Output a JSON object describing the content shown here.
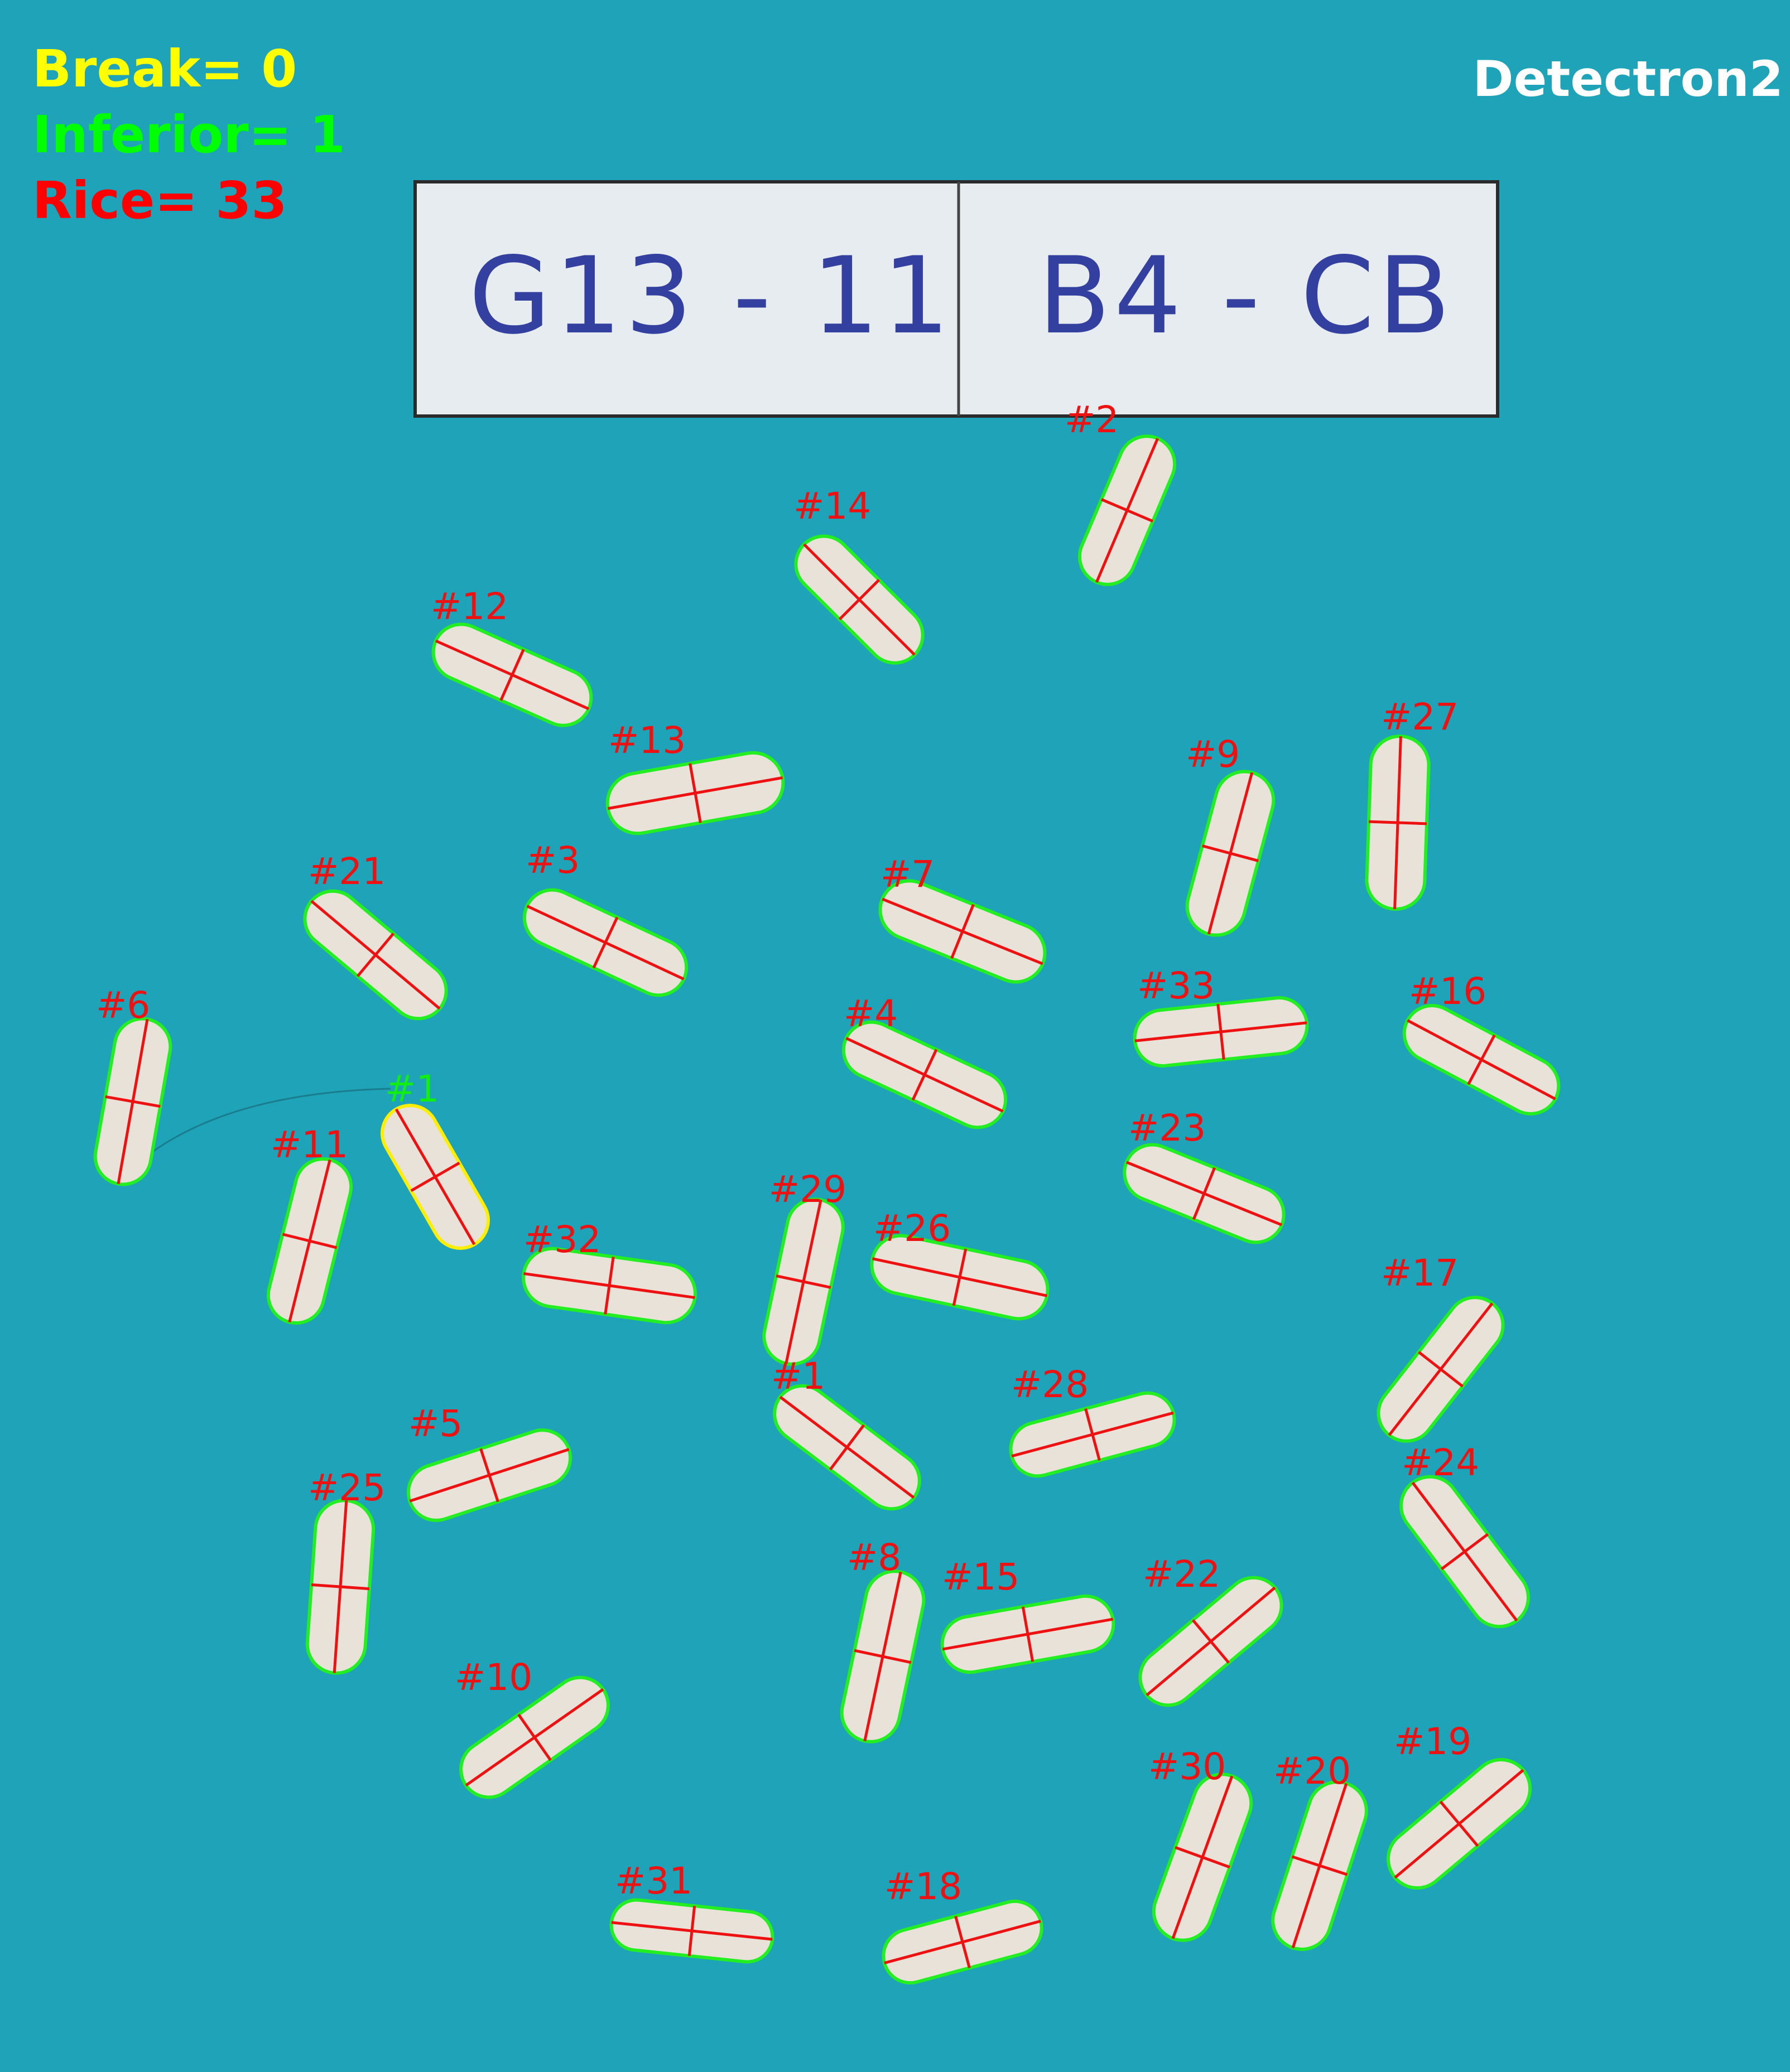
{
  "overlay": {
    "model_name": "Detectron2",
    "counters": [
      {
        "key": "break",
        "text": "Break= 0",
        "color": "#ffff00"
      },
      {
        "key": "inferior",
        "text": "Inferior= 1",
        "color": "#00ff00"
      },
      {
        "key": "rice",
        "text": "Rice= 33",
        "color": "#ff0000"
      }
    ]
  },
  "sample_label": {
    "left_text": "G13 - 11",
    "right_text": "B4 - CB"
  },
  "colors": {
    "background": "#1fa3b8",
    "grain_fill": "#e8e2d8",
    "good_outline": "#22ee22",
    "inferior_outline": "#ffee00",
    "axis_line": "#ee1111",
    "good_label": "#ee1111",
    "inferior_label": "#11ee11",
    "card": "#e6ecf0"
  },
  "grains": [
    {
      "label": "#1",
      "cls": "inferior"
    },
    {
      "label": "#2",
      "cls": "rice"
    },
    {
      "label": "#14",
      "cls": "rice"
    },
    {
      "label": "#12",
      "cls": "rice"
    },
    {
      "label": "#13",
      "cls": "rice"
    },
    {
      "label": "#27",
      "cls": "rice"
    },
    {
      "label": "#9",
      "cls": "rice"
    },
    {
      "label": "#21",
      "cls": "rice"
    },
    {
      "label": "#3",
      "cls": "rice"
    },
    {
      "label": "#7",
      "cls": "rice"
    },
    {
      "label": "#33",
      "cls": "rice"
    },
    {
      "label": "#16",
      "cls": "rice"
    },
    {
      "label": "#6",
      "cls": "rice"
    },
    {
      "label": "#4",
      "cls": "rice"
    },
    {
      "label": "#23",
      "cls": "rice"
    },
    {
      "label": "#11",
      "cls": "rice"
    },
    {
      "label": "#29",
      "cls": "rice"
    },
    {
      "label": "#26",
      "cls": "rice"
    },
    {
      "label": "#32",
      "cls": "rice"
    },
    {
      "label": "#17",
      "cls": "rice"
    },
    {
      "label": "#1",
      "cls": "rice"
    },
    {
      "label": "#28",
      "cls": "rice"
    },
    {
      "label": "#5",
      "cls": "rice"
    },
    {
      "label": "#25",
      "cls": "rice"
    },
    {
      "label": "#24",
      "cls": "rice"
    },
    {
      "label": "#8",
      "cls": "rice"
    },
    {
      "label": "#15",
      "cls": "rice"
    },
    {
      "label": "#22",
      "cls": "rice"
    },
    {
      "label": "#10",
      "cls": "rice"
    },
    {
      "label": "#19",
      "cls": "rice"
    },
    {
      "label": "#30",
      "cls": "rice"
    },
    {
      "label": "#20",
      "cls": "rice"
    },
    {
      "label": "#31",
      "cls": "rice"
    },
    {
      "label": "#18",
      "cls": "rice"
    }
  ]
}
